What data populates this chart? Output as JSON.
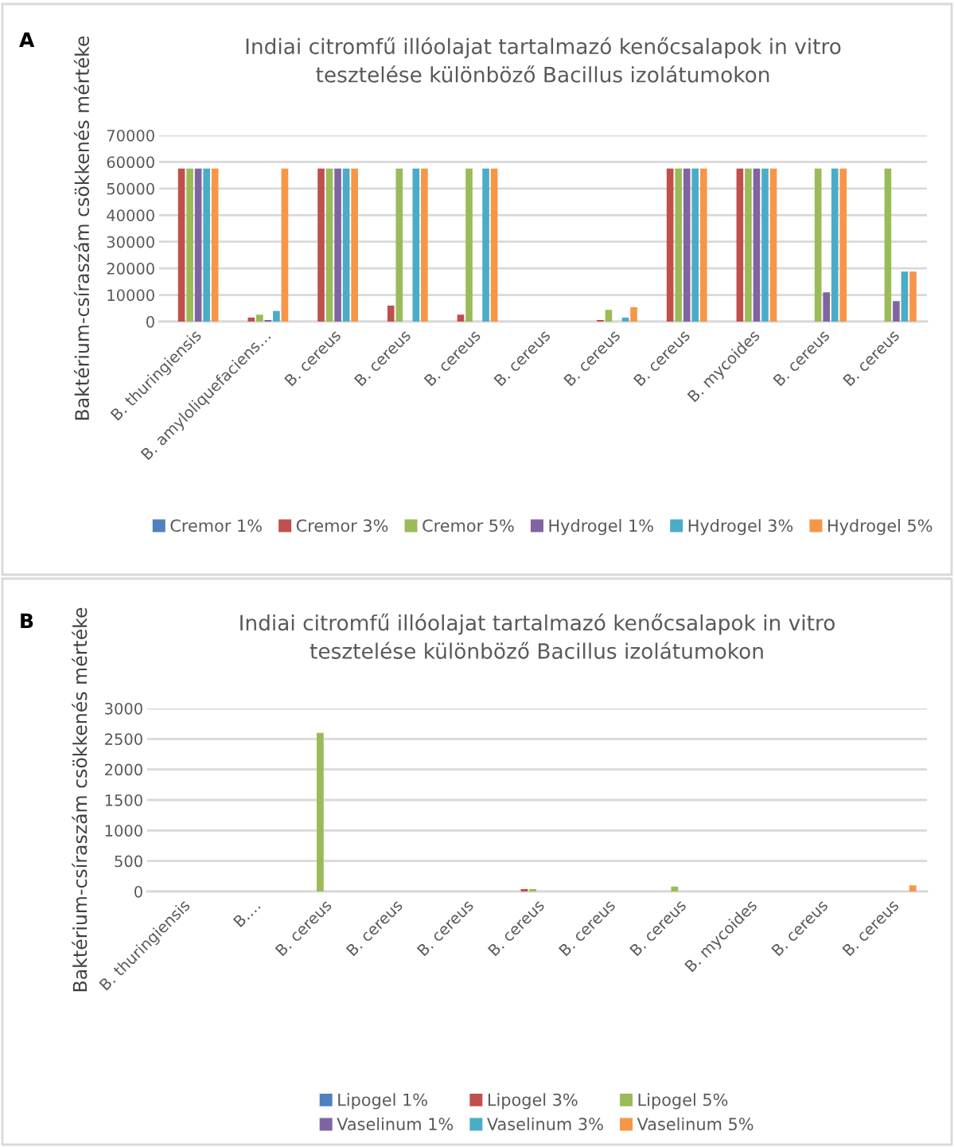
{
  "chart_data": [
    {
      "type": "bar",
      "title": "Indiai citromfű illóolajat tartalmazó kenőcsalapok in vitro\ntesztelése különböző Bacillus izolátumokon",
      "ylabel": "Baktérium-csíraszám csökkenés mértéke",
      "annotations": [
        "A"
      ],
      "categories": [
        "B. thuringiensis",
        "B. amyloliquefaciens…",
        "B. cereus",
        "B. cereus",
        "B. cereus",
        "B. cereus",
        "B. cereus",
        "B. cereus",
        "B. mycoides",
        "B. cereus",
        "B. cereus"
      ],
      "series": [
        {
          "name": "Cremor 1%",
          "color": "#4f81bd",
          "values": [
            0,
            0,
            0,
            0,
            0,
            0,
            0,
            0,
            0,
            0,
            0
          ]
        },
        {
          "name": "Cremor 3%",
          "color": "#c0504d",
          "values": [
            57500,
            1500,
            57500,
            6000,
            2600,
            0,
            600,
            57500,
            57500,
            0,
            0
          ]
        },
        {
          "name": "Cremor 5%",
          "color": "#9bbb59",
          "values": [
            57500,
            2600,
            57500,
            57500,
            57500,
            0,
            4400,
            57500,
            57500,
            57500,
            57500
          ]
        },
        {
          "name": "Hydrogel 1%",
          "color": "#8064a2",
          "values": [
            57500,
            600,
            57500,
            0,
            0,
            0,
            0,
            57500,
            57500,
            11000,
            7700
          ]
        },
        {
          "name": "Hydrogel 3%",
          "color": "#4bacc6",
          "values": [
            57500,
            4000,
            57500,
            57500,
            57500,
            0,
            1500,
            57500,
            57500,
            57500,
            18800
          ]
        },
        {
          "name": "Hydrogel 5%",
          "color": "#f79646",
          "values": [
            57500,
            57500,
            57500,
            57500,
            57500,
            0,
            5400,
            57500,
            57500,
            57500,
            18800
          ]
        }
      ],
      "ylim": [
        0,
        70000
      ],
      "yticks": [
        0,
        10000,
        20000,
        30000,
        40000,
        50000,
        60000,
        70000
      ],
      "grid": "y",
      "legend": "bottom",
      "tick_labels": "y"
    },
    {
      "type": "bar",
      "title": "Indiai citromfű illóolajat tartalmazó kenőcsalapok in vitro\ntesztelése különböző Bacillus izolátumokon",
      "ylabel": "Baktérium-csíraszám csökkenés mértéke",
      "annotations": [
        "B"
      ],
      "categories": [
        "B. thuringiensis",
        "B.…",
        "B. cereus",
        "B. cereus",
        "B. cereus",
        "B. cereus",
        "B. cereus",
        "B. cereus",
        "B. mycoides",
        "B. cereus",
        "B. cereus"
      ],
      "series": [
        {
          "name": "Lipogel 1%",
          "color": "#4f81bd",
          "values": [
            0,
            0,
            0,
            0,
            0,
            0,
            0,
            0,
            0,
            0,
            0
          ]
        },
        {
          "name": "Lipogel 3%",
          "color": "#c0504d",
          "values": [
            0,
            0,
            0,
            0,
            0,
            40,
            0,
            0,
            0,
            0,
            0
          ]
        },
        {
          "name": "Lipogel 5%",
          "color": "#9bbb59",
          "values": [
            0,
            0,
            2600,
            0,
            0,
            40,
            0,
            80,
            0,
            0,
            0
          ]
        },
        {
          "name": "Vaselinum 1%",
          "color": "#8064a2",
          "values": [
            0,
            0,
            0,
            0,
            0,
            0,
            0,
            0,
            0,
            0,
            0
          ]
        },
        {
          "name": "Vaselinum 3%",
          "color": "#4bacc6",
          "values": [
            0,
            0,
            0,
            0,
            0,
            0,
            0,
            0,
            0,
            0,
            0
          ]
        },
        {
          "name": "Vaselinum 5%",
          "color": "#f79646",
          "values": [
            0,
            0,
            0,
            0,
            0,
            0,
            0,
            0,
            0,
            0,
            100
          ]
        }
      ],
      "ylim": [
        0,
        3000
      ],
      "yticks": [
        0,
        500,
        1000,
        1500,
        2000,
        2500,
        3000
      ],
      "grid": "y",
      "legend": "bottom",
      "tick_labels": "y"
    }
  ]
}
